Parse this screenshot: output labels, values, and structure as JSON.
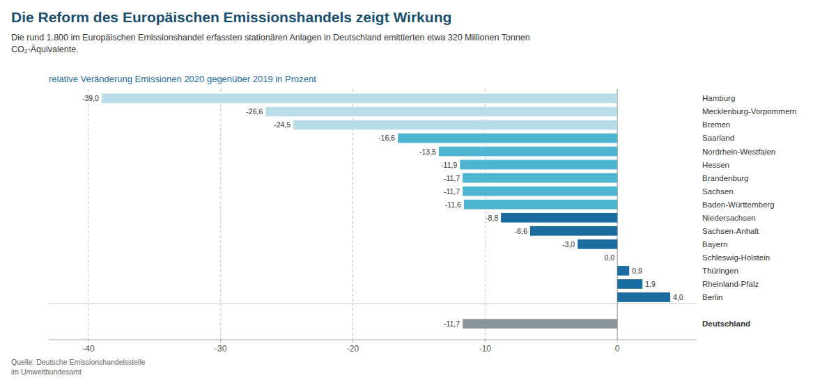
{
  "chart_data": {
    "type": "bar",
    "orientation": "horizontal",
    "title": "Die Reform des Europäischen Emissionshandels zeigt Wirkung",
    "subtitle": [
      "Die rund 1.800 im Europäischen Emissionshandel erfassten stationären Anlagen in Deutschland emittierten etwa 320 Millionen Tonnen",
      "CO₂-Äquivalente."
    ],
    "xlabel": "relative Veränderung Emissionen 2020 gegenüber 2019 in Prozent",
    "source": "Quelle: Deutsche Emissionshandelsstelle\nim Umweltbundesamt",
    "categories": [
      "Hamburg",
      "Mecklenburg-Vorpommern",
      "Bremen",
      "Saarland",
      "Nordrhein-Westfalen",
      "Hessen",
      "Brandenburg",
      "Sachsen",
      "Baden-Württemberg",
      "Niedersachsen",
      "Sachsen-Anhalt",
      "Bayern",
      "Schleswig-Holstein",
      "Thüringen",
      "Rheinland-Pfalz",
      "Berlin",
      null,
      "Deutschland"
    ],
    "values": [
      -39.0,
      -26.6,
      -24.5,
      -16.6,
      -13.5,
      -11.9,
      -11.7,
      -11.7,
      -11.6,
      -8.8,
      -6.6,
      -3.0,
      0.0,
      0.9,
      1.9,
      4.0,
      null,
      -11.7
    ],
    "value_labels": [
      "-39,0",
      "-26,6",
      "-24,5",
      "-16,6",
      "-13,5",
      "-11,9",
      "-11,7",
      "-11,7",
      "-11,6",
      "-8,8",
      "-6,6",
      "-3,0",
      "0,0",
      "0,9",
      "1,9",
      "4,0",
      null,
      "-11,7"
    ],
    "data_labels": true,
    "colors": [
      "#b8dde8",
      "#b8dde8",
      "#b8dde8",
      "#4db5d0",
      "#4db5d0",
      "#4db5d0",
      "#4db5d0",
      "#4db5d0",
      "#4db5d0",
      "#1a6ca0",
      "#1a6ca0",
      "#1a6ca0",
      "#1a6ca0",
      "#1a6ca0",
      "#1a6ca0",
      "#1a6ca0",
      null,
      "#8a9399"
    ],
    "xlim": [
      -43,
      6
    ],
    "xticks": [
      -40,
      -30,
      -20,
      -10,
      0
    ],
    "grid": true
  }
}
